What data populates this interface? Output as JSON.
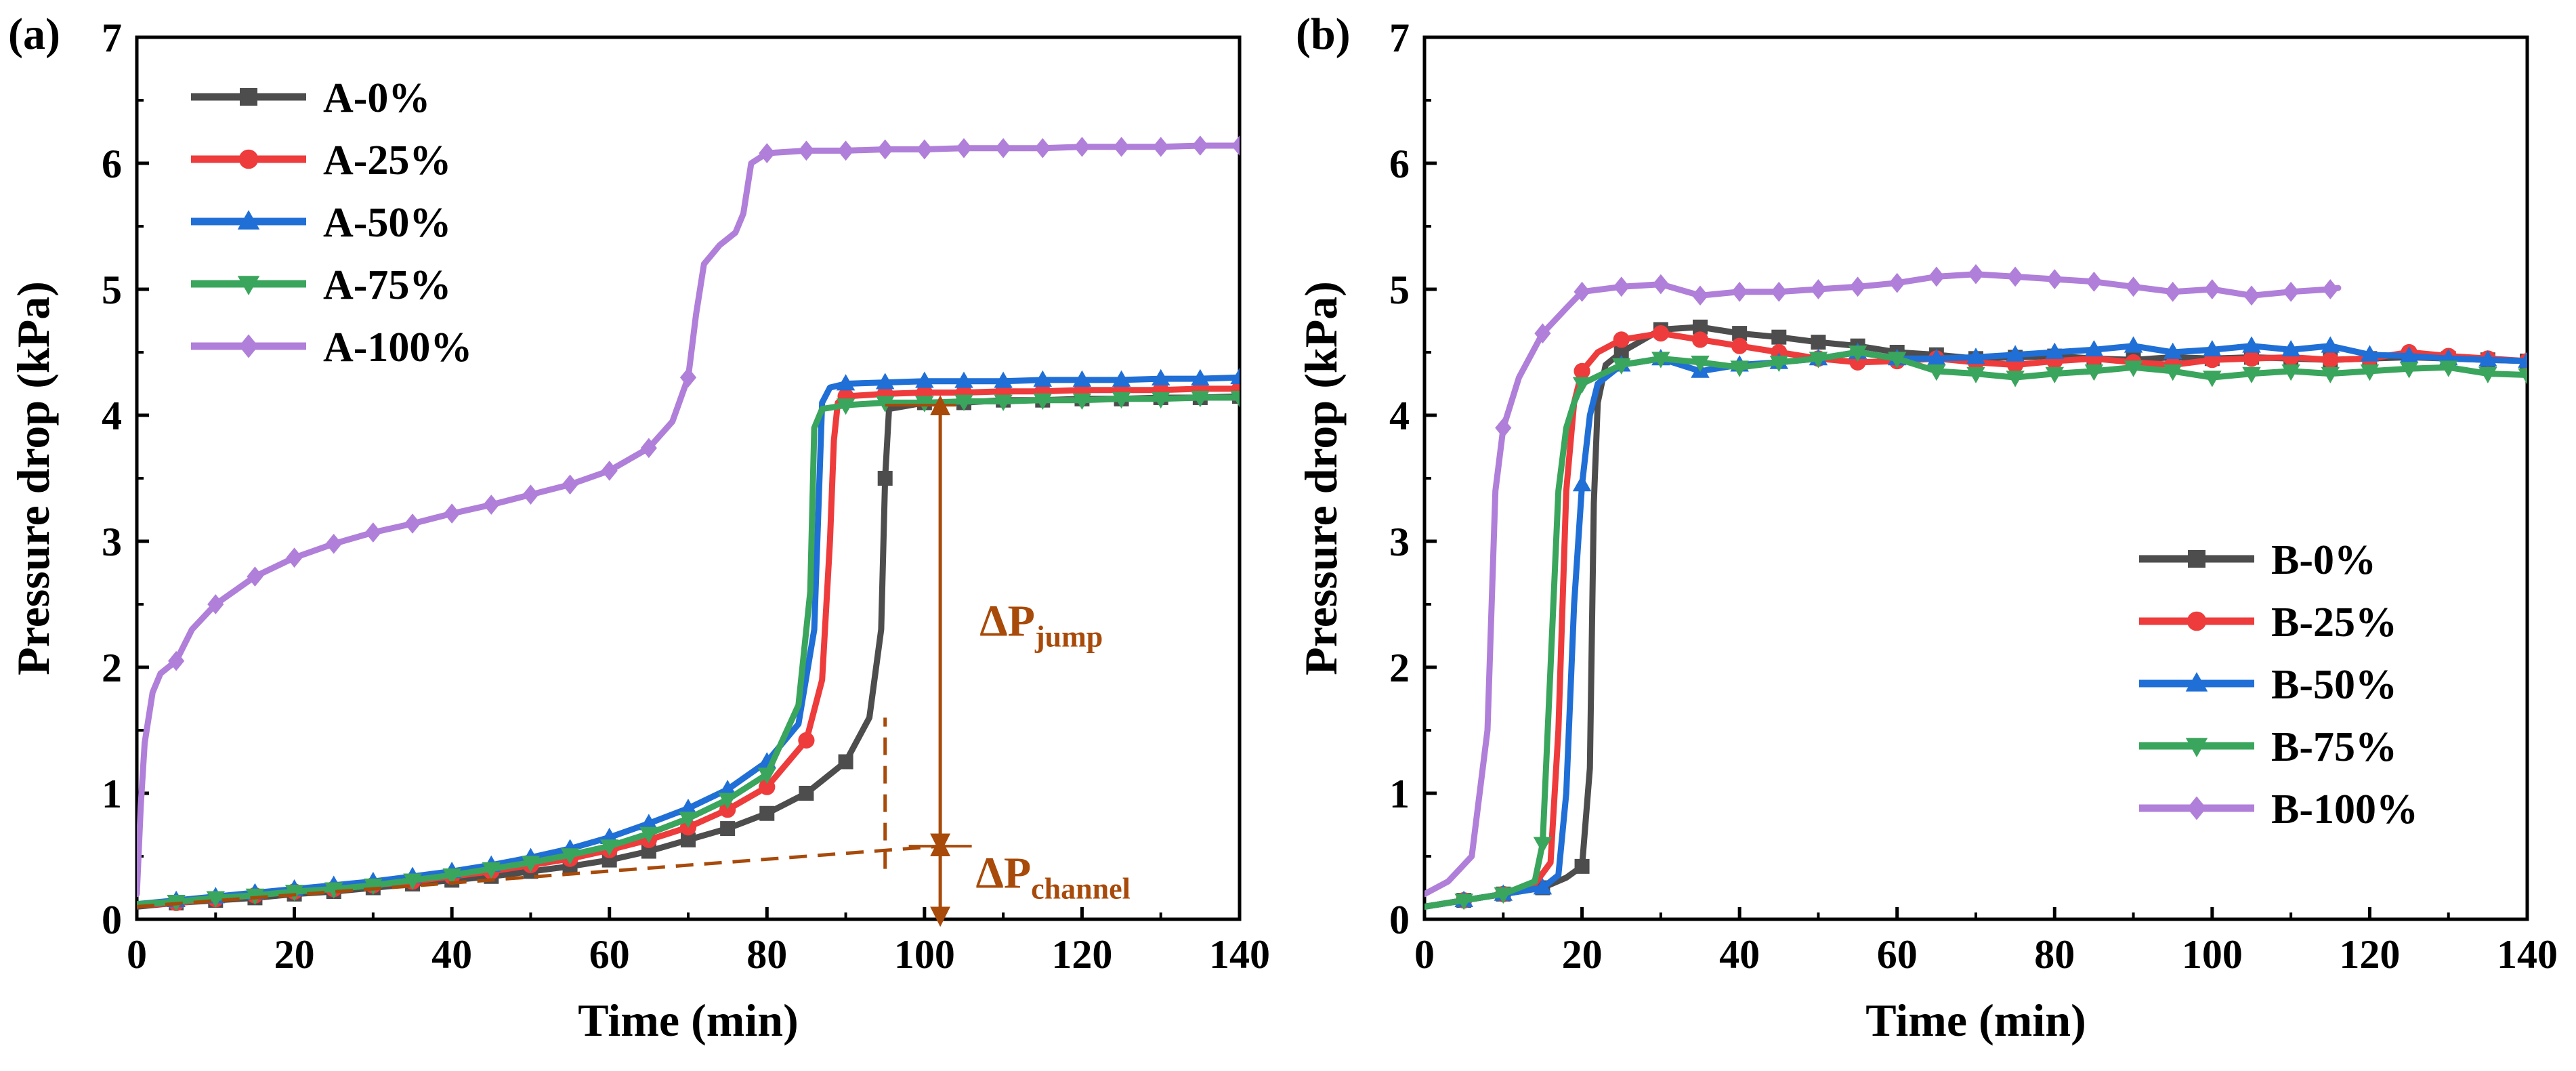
{
  "chart_data": [
    {
      "panel": "(a)",
      "type": "line",
      "xlabel": "Time (min)",
      "ylabel": "Pressure drop (kPa)",
      "xlim": [
        0,
        140
      ],
      "ylim": [
        0,
        7
      ],
      "xticks": [
        "0",
        "20",
        "40",
        "60",
        "80",
        "100",
        "120",
        "140"
      ],
      "yticks": [
        "0",
        "1",
        "2",
        "3",
        "4",
        "5",
        "6",
        "7"
      ],
      "grid": false,
      "legend": "top-left",
      "series": [
        {
          "name": "A-0%",
          "color": "#4d4d4d",
          "marker": "square",
          "x": [
            0,
            5,
            10,
            15,
            20,
            25,
            30,
            35,
            40,
            45,
            50,
            55,
            60,
            65,
            70,
            75,
            80,
            85,
            90,
            93,
            94.5,
            95,
            95.5,
            100,
            105,
            110,
            115,
            120,
            125,
            130,
            135,
            140
          ],
          "y": [
            0.1,
            0.13,
            0.15,
            0.17,
            0.2,
            0.22,
            0.25,
            0.28,
            0.31,
            0.34,
            0.38,
            0.42,
            0.47,
            0.54,
            0.63,
            0.72,
            0.84,
            1.0,
            1.25,
            1.6,
            2.3,
            3.5,
            4.05,
            4.1,
            4.1,
            4.12,
            4.12,
            4.13,
            4.13,
            4.14,
            4.14,
            4.15
          ]
        },
        {
          "name": "A-25%",
          "color": "#ee3b3b",
          "marker": "circle",
          "x": [
            0,
            5,
            10,
            15,
            20,
            25,
            30,
            35,
            40,
            45,
            50,
            55,
            60,
            65,
            70,
            75,
            80,
            85,
            87,
            88,
            88.5,
            89,
            90,
            95,
            100,
            105,
            110,
            115,
            120,
            125,
            130,
            135,
            140
          ],
          "y": [
            0.11,
            0.13,
            0.16,
            0.19,
            0.22,
            0.24,
            0.27,
            0.3,
            0.34,
            0.38,
            0.43,
            0.48,
            0.55,
            0.63,
            0.73,
            0.87,
            1.05,
            1.42,
            1.9,
            3.0,
            3.8,
            4.1,
            4.15,
            4.17,
            4.18,
            4.18,
            4.19,
            4.19,
            4.2,
            4.2,
            4.2,
            4.21,
            4.21
          ]
        },
        {
          "name": "A-50%",
          "color": "#1f6fd6",
          "marker": "triangle",
          "x": [
            0,
            5,
            10,
            15,
            20,
            25,
            30,
            35,
            40,
            45,
            50,
            55,
            60,
            65,
            70,
            75,
            80,
            84,
            86,
            87,
            88,
            90,
            95,
            100,
            105,
            110,
            115,
            120,
            125,
            130,
            135,
            140
          ],
          "y": [
            0.12,
            0.15,
            0.18,
            0.21,
            0.24,
            0.27,
            0.3,
            0.34,
            0.38,
            0.43,
            0.49,
            0.56,
            0.65,
            0.76,
            0.88,
            1.03,
            1.25,
            1.55,
            2.3,
            4.1,
            4.22,
            4.25,
            4.26,
            4.27,
            4.27,
            4.27,
            4.28,
            4.28,
            4.28,
            4.29,
            4.29,
            4.3
          ]
        },
        {
          "name": "A-75%",
          "color": "#3aa55c",
          "marker": "triangle-down",
          "x": [
            0,
            5,
            10,
            15,
            20,
            25,
            30,
            35,
            40,
            45,
            50,
            55,
            60,
            65,
            70,
            75,
            80,
            84,
            85.5,
            86,
            87,
            90,
            95,
            100,
            105,
            110,
            115,
            120,
            125,
            130,
            135,
            140
          ],
          "y": [
            0.12,
            0.14,
            0.17,
            0.19,
            0.22,
            0.24,
            0.27,
            0.31,
            0.35,
            0.4,
            0.45,
            0.51,
            0.58,
            0.68,
            0.8,
            0.95,
            1.15,
            1.7,
            2.6,
            3.9,
            4.05,
            4.08,
            4.1,
            4.1,
            4.11,
            4.11,
            4.12,
            4.12,
            4.13,
            4.13,
            4.14,
            4.14
          ]
        },
        {
          "name": "A-100%",
          "color": "#b07fd9",
          "marker": "diamond",
          "x": [
            0,
            0.5,
            1,
            2,
            3,
            5,
            7,
            10,
            15,
            20,
            25,
            30,
            35,
            40,
            45,
            50,
            55,
            60,
            65,
            68,
            70,
            71,
            72,
            74,
            76,
            77,
            78,
            80,
            85,
            90,
            95,
            100,
            105,
            110,
            115,
            120,
            125,
            130,
            135,
            140
          ],
          "y": [
            0.2,
            0.9,
            1.4,
            1.8,
            1.95,
            2.05,
            2.3,
            2.5,
            2.72,
            2.87,
            2.98,
            3.07,
            3.14,
            3.22,
            3.29,
            3.37,
            3.45,
            3.56,
            3.74,
            3.95,
            4.3,
            4.8,
            5.2,
            5.35,
            5.45,
            5.6,
            6.0,
            6.08,
            6.1,
            6.1,
            6.11,
            6.11,
            6.12,
            6.12,
            6.12,
            6.13,
            6.13,
            6.13,
            6.14,
            6.14
          ]
        }
      ],
      "annotations": {
        "color": "#a84a0a",
        "jump_label": "ΔP",
        "jump_sub": "jump",
        "channel_label": "ΔP",
        "channel_sub": "channel",
        "baseline": {
          "x": [
            0,
            102
          ],
          "y": [
            0.1,
            0.58
          ]
        },
        "vline": {
          "x": 95,
          "y": [
            0.4,
            1.6
          ]
        },
        "arrow_jump": {
          "x": 102,
          "y": [
            0.6,
            4.08
          ]
        },
        "arrow_channel": {
          "x": 102,
          "y": [
            0.02,
            0.58
          ]
        },
        "topline": {
          "x": [
            95,
            104
          ],
          "y": 4.08
        },
        "channel_top": {
          "x": [
            98,
            106
          ],
          "y": 0.58
        }
      }
    },
    {
      "panel": "(b)",
      "type": "line",
      "xlabel": "Time (min)",
      "ylabel": "Pressure drop (kPa)",
      "xlim": [
        0,
        140
      ],
      "ylim": [
        0,
        7
      ],
      "xticks": [
        "0",
        "20",
        "40",
        "60",
        "80",
        "100",
        "120",
        "140"
      ],
      "yticks": [
        "0",
        "1",
        "2",
        "3",
        "4",
        "5",
        "6",
        "7"
      ],
      "grid": false,
      "legend": "bottom-right",
      "series": [
        {
          "name": "B-0%",
          "color": "#4d4d4d",
          "marker": "square",
          "x": [
            0,
            5,
            10,
            15,
            18,
            20,
            21,
            21.5,
            22,
            23,
            25,
            30,
            35,
            40,
            45,
            50,
            55,
            60,
            65,
            70,
            75,
            80,
            85,
            90,
            95,
            100,
            105,
            110,
            115,
            120,
            125,
            130,
            135,
            140
          ],
          "y": [
            0.1,
            0.15,
            0.2,
            0.25,
            0.33,
            0.42,
            1.2,
            3.3,
            4.1,
            4.4,
            4.5,
            4.68,
            4.7,
            4.65,
            4.62,
            4.58,
            4.55,
            4.5,
            4.48,
            4.45,
            4.46,
            4.47,
            4.45,
            4.44,
            4.46,
            4.45,
            4.46,
            4.45,
            4.44,
            4.45,
            4.46,
            4.45,
            4.44,
            4.43
          ]
        },
        {
          "name": "B-25%",
          "color": "#ee3b3b",
          "marker": "circle",
          "x": [
            0,
            5,
            10,
            14,
            16,
            17,
            18,
            19,
            20,
            22,
            25,
            30,
            35,
            40,
            45,
            50,
            55,
            60,
            65,
            70,
            75,
            80,
            85,
            90,
            95,
            100,
            105,
            110,
            115,
            120,
            125,
            130,
            135,
            140
          ],
          "y": [
            0.1,
            0.15,
            0.2,
            0.28,
            0.45,
            1.5,
            3.4,
            4.1,
            4.35,
            4.5,
            4.6,
            4.65,
            4.6,
            4.55,
            4.5,
            4.45,
            4.42,
            4.43,
            4.45,
            4.42,
            4.4,
            4.43,
            4.45,
            4.42,
            4.4,
            4.44,
            4.45,
            4.46,
            4.44,
            4.45,
            4.5,
            4.47,
            4.45,
            4.43
          ]
        },
        {
          "name": "B-50%",
          "color": "#1f6fd6",
          "marker": "triangle",
          "x": [
            0,
            5,
            10,
            15,
            17,
            18,
            19,
            20,
            21,
            22,
            25,
            30,
            35,
            40,
            45,
            50,
            55,
            60,
            65,
            70,
            75,
            80,
            85,
            90,
            95,
            100,
            105,
            110,
            115,
            120,
            125,
            130,
            135,
            140
          ],
          "y": [
            0.1,
            0.15,
            0.2,
            0.25,
            0.35,
            1.0,
            2.5,
            3.45,
            4.0,
            4.25,
            4.4,
            4.45,
            4.35,
            4.4,
            4.42,
            4.45,
            4.5,
            4.45,
            4.45,
            4.46,
            4.48,
            4.5,
            4.52,
            4.55,
            4.5,
            4.52,
            4.55,
            4.52,
            4.55,
            4.48,
            4.47,
            4.45,
            4.44,
            4.43
          ]
        },
        {
          "name": "B-75%",
          "color": "#3aa55c",
          "marker": "triangle-down",
          "x": [
            0,
            5,
            10,
            14,
            15,
            16,
            17,
            18,
            19,
            20,
            25,
            30,
            35,
            40,
            45,
            50,
            55,
            60,
            65,
            70,
            75,
            80,
            85,
            90,
            95,
            100,
            105,
            110,
            115,
            120,
            125,
            130,
            135,
            140
          ],
          "y": [
            0.1,
            0.15,
            0.2,
            0.3,
            0.6,
            2.0,
            3.4,
            3.9,
            4.1,
            4.25,
            4.4,
            4.45,
            4.42,
            4.38,
            4.42,
            4.45,
            4.5,
            4.45,
            4.35,
            4.33,
            4.3,
            4.33,
            4.35,
            4.38,
            4.35,
            4.3,
            4.33,
            4.35,
            4.33,
            4.35,
            4.37,
            4.38,
            4.33,
            4.32
          ]
        },
        {
          "name": "B-100%",
          "color": "#b07fd9",
          "marker": "diamond",
          "x": [
            0,
            3,
            6,
            8,
            9,
            10,
            12,
            15,
            18,
            20,
            25,
            30,
            35,
            40,
            45,
            50,
            55,
            60,
            65,
            70,
            75,
            80,
            85,
            90,
            95,
            100,
            105,
            110,
            115,
            116
          ],
          "y": [
            0.2,
            0.3,
            0.5,
            1.5,
            3.4,
            3.9,
            4.3,
            4.65,
            4.85,
            4.98,
            5.02,
            5.04,
            4.95,
            4.98,
            4.98,
            5.0,
            5.02,
            5.05,
            5.1,
            5.12,
            5.1,
            5.08,
            5.06,
            5.02,
            4.98,
            5.0,
            4.95,
            4.98,
            5.0,
            5.01
          ]
        }
      ]
    }
  ]
}
